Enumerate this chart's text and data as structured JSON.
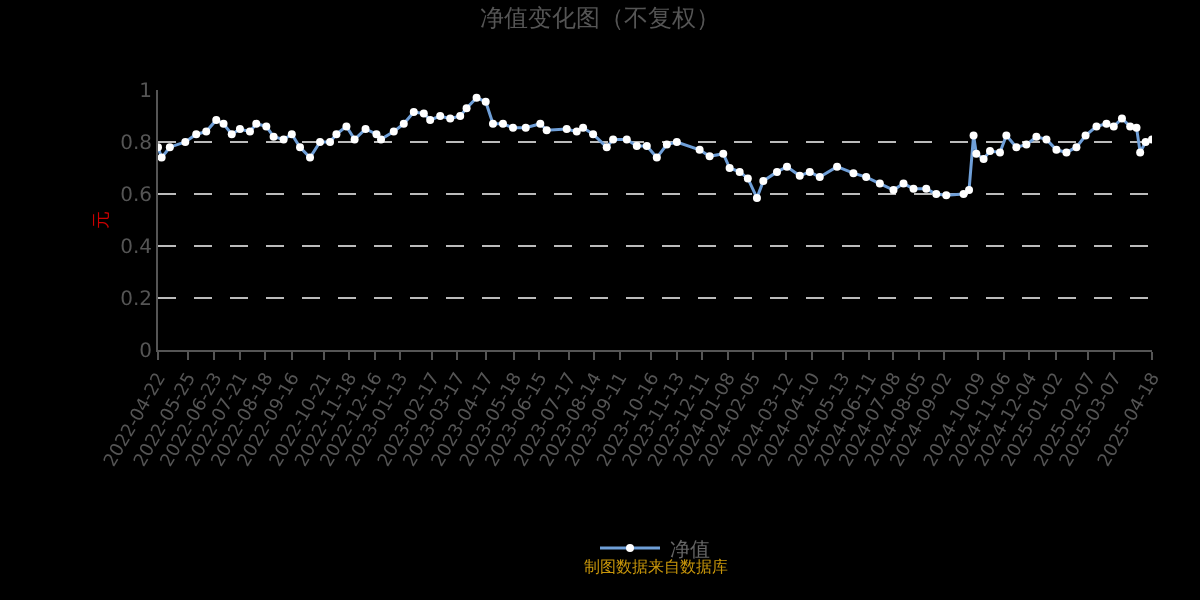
{
  "chart_data": {
    "type": "line",
    "title": "净值变化图（不复权）",
    "ylabel": "元",
    "annotations": [
      "制图数据来自数据库"
    ],
    "x": [
      "2022-04-22",
      "2022-04-26",
      "2022-05-05",
      "2022-05-22",
      "2022-06-03",
      "2022-06-14",
      "2022-06-25",
      "2022-07-03",
      "2022-07-12",
      "2022-07-21",
      "2022-08-01",
      "2022-08-08",
      "2022-08-19",
      "2022-08-27",
      "2022-09-07",
      "2022-09-16",
      "2022-09-25",
      "2022-10-06",
      "2022-10-17",
      "2022-10-28",
      "2022-11-04",
      "2022-11-15",
      "2022-11-24",
      "2022-12-06",
      "2022-12-18",
      "2022-12-23",
      "2023-01-06",
      "2023-01-17",
      "2023-01-28",
      "2023-02-08",
      "2023-02-15",
      "2023-02-26",
      "2023-03-09",
      "2023-03-20",
      "2023-03-27",
      "2023-04-07",
      "2023-04-17",
      "2023-04-25",
      "2023-05-06",
      "2023-05-17",
      "2023-05-31",
      "2023-06-16",
      "2023-06-23",
      "2023-07-15",
      "2023-07-26",
      "2023-08-02",
      "2023-08-13",
      "2023-08-28",
      "2023-09-04",
      "2023-09-19",
      "2023-09-30",
      "2023-10-11",
      "2023-10-22",
      "2023-11-02",
      "2023-11-13",
      "2023-12-08",
      "2023-12-19",
      "2024-01-03",
      "2024-01-10",
      "2024-01-21",
      "2024-01-30",
      "2024-02-09",
      "2024-02-16",
      "2024-03-02",
      "2024-03-13",
      "2024-03-27",
      "2024-04-07",
      "2024-04-18",
      "2024-05-07",
      "2024-05-25",
      "2024-06-08",
      "2024-06-23",
      "2024-07-08",
      "2024-07-19",
      "2024-07-30",
      "2024-08-13",
      "2024-08-24",
      "2024-09-04",
      "2024-09-23",
      "2024-09-29",
      "2024-10-04",
      "2024-10-07",
      "2024-10-15",
      "2024-10-22",
      "2024-11-02",
      "2024-11-09",
      "2024-11-20",
      "2024-12-01",
      "2024-12-12",
      "2024-12-23",
      "2025-01-03",
      "2025-01-14",
      "2025-01-25",
      "2025-02-04",
      "2025-02-16",
      "2025-02-27",
      "2025-03-07",
      "2025-03-16",
      "2025-03-25",
      "2025-04-01",
      "2025-04-05",
      "2025-04-11",
      "2025-04-18"
    ],
    "series": [
      {
        "name": "净值",
        "color": "#6f9fd8",
        "values": [
          0.78,
          0.74,
          0.78,
          0.8,
          0.83,
          0.84,
          0.885,
          0.87,
          0.83,
          0.85,
          0.84,
          0.87,
          0.86,
          0.82,
          0.81,
          0.83,
          0.78,
          0.74,
          0.8,
          0.8,
          0.83,
          0.86,
          0.81,
          0.85,
          0.83,
          0.81,
          0.84,
          0.87,
          0.915,
          0.91,
          0.885,
          0.9,
          0.89,
          0.9,
          0.93,
          0.97,
          0.955,
          0.87,
          0.87,
          0.855,
          0.855,
          0.87,
          0.845,
          0.85,
          0.84,
          0.855,
          0.83,
          0.78,
          0.81,
          0.81,
          0.785,
          0.785,
          0.74,
          0.79,
          0.8,
          0.77,
          0.745,
          0.755,
          0.7,
          0.685,
          0.66,
          0.585,
          0.65,
          0.685,
          0.705,
          0.67,
          0.685,
          0.665,
          0.705,
          0.68,
          0.665,
          0.64,
          0.615,
          0.64,
          0.62,
          0.62,
          0.6,
          0.595,
          0.6,
          0.615,
          0.825,
          0.755,
          0.735,
          0.765,
          0.76,
          0.825,
          0.78,
          0.79,
          0.82,
          0.81,
          0.77,
          0.76,
          0.78,
          0.825,
          0.86,
          0.87,
          0.86,
          0.89,
          0.86,
          0.855,
          0.76,
          0.8,
          0.81
        ]
      }
    ],
    "xlim": [
      "2022-04-22",
      "2025-04-18"
    ],
    "xticks": [
      "2022-04-22",
      "2022-05-25",
      "2022-06-23",
      "2022-07-21",
      "2022-08-18",
      "2022-09-16",
      "2022-10-21",
      "2022-11-18",
      "2022-12-16",
      "2023-01-13",
      "2023-02-17",
      "2023-03-17",
      "2023-04-17",
      "2023-05-18",
      "2023-06-15",
      "2023-07-17",
      "2023-08-14",
      "2023-09-11",
      "2023-10-16",
      "2023-11-13",
      "2023-12-11",
      "2024-01-08",
      "2024-02-05",
      "2024-03-12",
      "2024-04-10",
      "2024-05-13",
      "2024-06-11",
      "2024-07-08",
      "2024-08-05",
      "2024-09-02",
      "2024-10-09",
      "2024-11-06",
      "2024-12-04",
      "2025-01-02",
      "2025-02-07",
      "2025-03-07",
      "2025-04-18"
    ],
    "ylim": [
      0,
      1
    ],
    "yticks": [
      0,
      0.2,
      0.4,
      0.6,
      0.8,
      1
    ],
    "grid": "y",
    "legend": "bottom",
    "marker": "circle",
    "line_style": "solid"
  }
}
